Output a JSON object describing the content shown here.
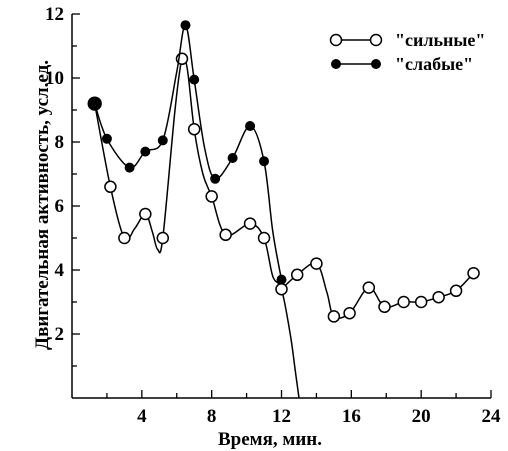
{
  "chart_data": {
    "type": "line",
    "xlabel": "Время, мин.",
    "ylabel": "Двигательная активность, усл.ед.",
    "xlim": [
      0,
      24
    ],
    "ylim": [
      0,
      12
    ],
    "x_ticks": [
      4,
      8,
      12,
      16,
      20,
      24
    ],
    "y_ticks": [
      2,
      4,
      6,
      8,
      10,
      12
    ],
    "grid": false,
    "legend_position": "top-right",
    "series": [
      {
        "name": "\"сильные\"",
        "marker": "open-circle",
        "color": "#000000",
        "points": [
          {
            "x": 1.3,
            "y": 9.2,
            "m": true
          },
          {
            "x": 2.2,
            "y": 6.6,
            "m": true
          },
          {
            "x": 3.0,
            "y": 5.0,
            "m": true
          },
          {
            "x": 3.6,
            "y": 5.3,
            "m": false
          },
          {
            "x": 4.2,
            "y": 5.75,
            "m": true
          },
          {
            "x": 4.6,
            "y": 5.2,
            "m": false
          },
          {
            "x": 4.9,
            "y": 4.65,
            "m": false
          },
          {
            "x": 5.2,
            "y": 5.0,
            "m": true
          },
          {
            "x": 5.9,
            "y": 9.0,
            "m": false
          },
          {
            "x": 6.3,
            "y": 10.6,
            "m": true
          },
          {
            "x": 6.6,
            "y": 10.3,
            "m": false
          },
          {
            "x": 7.0,
            "y": 8.4,
            "m": true
          },
          {
            "x": 7.5,
            "y": 7.0,
            "m": false
          },
          {
            "x": 8.0,
            "y": 6.3,
            "m": true
          },
          {
            "x": 8.8,
            "y": 5.1,
            "m": true
          },
          {
            "x": 10.2,
            "y": 5.45,
            "m": true
          },
          {
            "x": 11.0,
            "y": 5.0,
            "m": true
          },
          {
            "x": 11.5,
            "y": 3.8,
            "m": false
          },
          {
            "x": 12.0,
            "y": 3.4,
            "m": true
          },
          {
            "x": 12.5,
            "y": 2.0,
            "m": false
          },
          {
            "x": 12.8,
            "y": 0.8,
            "m": false
          },
          {
            "x": 13.0,
            "y": 0.0,
            "m": false
          }
        ],
        "points_tail": [
          {
            "x": 12.0,
            "y": 3.4,
            "m": false
          },
          {
            "x": 12.9,
            "y": 3.85,
            "m": true
          },
          {
            "x": 14.0,
            "y": 4.2,
            "m": true
          },
          {
            "x": 14.6,
            "y": 3.3,
            "m": false
          },
          {
            "x": 15.0,
            "y": 2.55,
            "m": true
          },
          {
            "x": 15.9,
            "y": 2.65,
            "m": true
          },
          {
            "x": 17.0,
            "y": 3.45,
            "m": true
          },
          {
            "x": 17.9,
            "y": 2.85,
            "m": true
          },
          {
            "x": 19.0,
            "y": 3.0,
            "m": true
          },
          {
            "x": 20.0,
            "y": 3.0,
            "m": true
          },
          {
            "x": 21.0,
            "y": 3.15,
            "m": true
          },
          {
            "x": 22.0,
            "y": 3.35,
            "m": true
          },
          {
            "x": 23.0,
            "y": 3.9,
            "m": true
          }
        ]
      },
      {
        "name": "\"слабые\"",
        "marker": "filled-circle",
        "color": "#000000",
        "points": [
          {
            "x": 1.3,
            "y": 9.2,
            "m": true
          },
          {
            "x": 2.0,
            "y": 8.1,
            "m": true
          },
          {
            "x": 3.3,
            "y": 7.2,
            "m": true
          },
          {
            "x": 4.2,
            "y": 7.7,
            "m": true
          },
          {
            "x": 5.2,
            "y": 8.05,
            "m": true
          },
          {
            "x": 6.0,
            "y": 10.2,
            "m": false
          },
          {
            "x": 6.5,
            "y": 11.65,
            "m": true
          },
          {
            "x": 7.0,
            "y": 9.95,
            "m": true
          },
          {
            "x": 7.6,
            "y": 7.8,
            "m": false
          },
          {
            "x": 8.2,
            "y": 6.85,
            "m": true
          },
          {
            "x": 9.2,
            "y": 7.5,
            "m": true
          },
          {
            "x": 10.2,
            "y": 8.5,
            "m": true
          },
          {
            "x": 11.0,
            "y": 7.4,
            "m": true
          },
          {
            "x": 11.5,
            "y": 5.2,
            "m": false
          },
          {
            "x": 12.0,
            "y": 3.7,
            "m": true
          }
        ]
      }
    ]
  }
}
